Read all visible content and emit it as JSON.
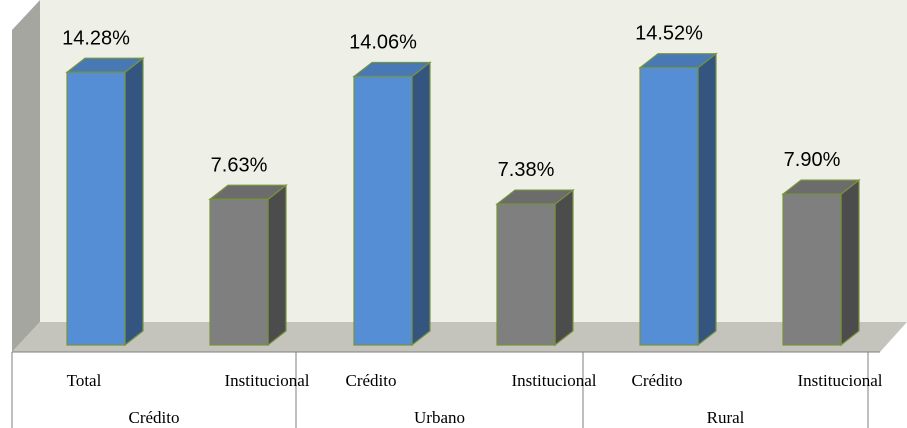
{
  "chart_data": {
    "type": "bar3d",
    "groups": [
      "Crédito",
      "Urbano",
      "Rural"
    ],
    "categories": [
      "Total",
      "Institucional",
      "Crédito",
      "Institucional",
      "Crédito",
      "Institucional"
    ],
    "values": [
      14.28,
      7.63,
      14.06,
      7.38,
      14.52,
      7.9
    ],
    "value_labels": [
      "14.28%",
      "7.63%",
      "14.06%",
      "7.38%",
      "14.52%",
      "7.90%"
    ],
    "colors": [
      "#558ed5",
      "#7f7f7f",
      "#558ed5",
      "#7f7f7f",
      "#558ed5",
      "#7f7f7f"
    ]
  }
}
